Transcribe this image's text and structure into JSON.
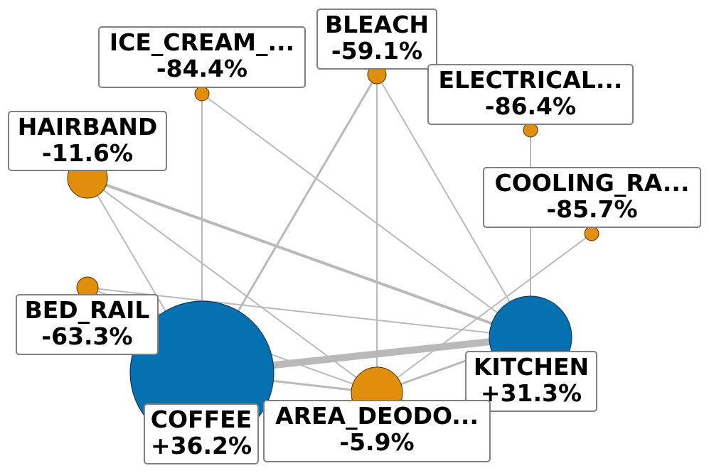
{
  "nodes": [
    {
      "id": "bleach",
      "name": "BLEACH",
      "change": "-59.1%",
      "color": "#e08e0b"
    },
    {
      "id": "ice_cream",
      "name": "ICE_CREAM_...",
      "change": "-84.4%",
      "color": "#e08e0b"
    },
    {
      "id": "electrical",
      "name": "ELECTRICAL...",
      "change": "-86.4%",
      "color": "#e08e0b"
    },
    {
      "id": "hairband",
      "name": "HAIRBAND",
      "change": "-11.6%",
      "color": "#e08e0b"
    },
    {
      "id": "cooling_ra",
      "name": "COOLING_RA...",
      "change": "-85.7%",
      "color": "#e08e0b"
    },
    {
      "id": "bed_rail",
      "name": "BED_RAIL",
      "change": "-63.3%",
      "color": "#e08e0b"
    },
    {
      "id": "kitchen",
      "name": "KITCHEN",
      "change": "+31.3%",
      "color": "#0571b0"
    },
    {
      "id": "coffee",
      "name": "COFFEE",
      "change": "+36.2%",
      "color": "#0571b0"
    },
    {
      "id": "area_deodo",
      "name": "AREA_DEODO...",
      "change": "-5.9%",
      "color": "#e08e0b"
    }
  ],
  "edges": [
    {
      "from": "coffee",
      "to": "kitchen",
      "weight": 5
    },
    {
      "from": "hairband",
      "to": "kitchen",
      "weight": 2
    },
    {
      "from": "coffee",
      "to": "bleach",
      "weight": 1.5
    },
    {
      "from": "coffee",
      "to": "area_deodo",
      "weight": 1.5
    },
    {
      "from": "area_deodo",
      "to": "kitchen",
      "weight": 1.5
    },
    {
      "from": "hairband",
      "to": "coffee",
      "weight": 1
    },
    {
      "from": "ice_cream",
      "to": "coffee",
      "weight": 1
    },
    {
      "from": "ice_cream",
      "to": "kitchen",
      "weight": 1
    },
    {
      "from": "bleach",
      "to": "kitchen",
      "weight": 1
    },
    {
      "from": "bleach",
      "to": "area_deodo",
      "weight": 1
    },
    {
      "from": "electrical",
      "to": "kitchen",
      "weight": 1
    },
    {
      "from": "cooling_ra",
      "to": "area_deodo",
      "weight": 1
    },
    {
      "from": "bed_rail",
      "to": "kitchen",
      "weight": 1
    },
    {
      "from": "bed_rail",
      "to": "area_deodo",
      "weight": 1
    },
    {
      "from": "hairband",
      "to": "area_deodo",
      "weight": 1
    }
  ]
}
